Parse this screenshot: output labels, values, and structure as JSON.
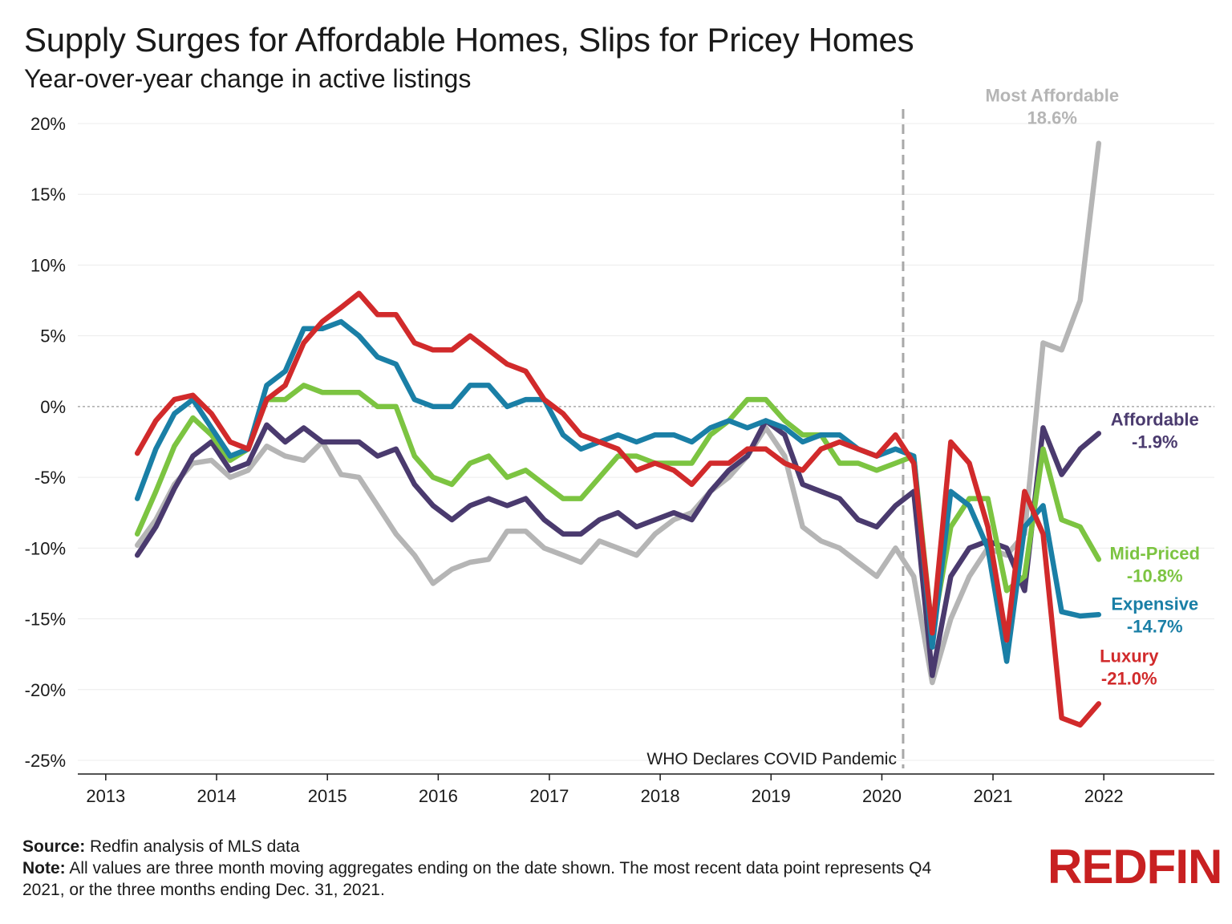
{
  "title": "Supply Surges for Affordable Homes, Slips for Pricey Homes",
  "subtitle": "Year-over-year change in active listings",
  "footer": {
    "source_label": "Source:",
    "source_text": "Redfin analysis of MLS data",
    "note_label": "Note:",
    "note_text": "All values are three month moving aggregates ending on the date shown. The most recent data point represents Q4 2021, or the three months ending Dec. 31, 2021."
  },
  "logo_text": "REDFIN",
  "chart_data": {
    "type": "line",
    "x_axis": {
      "type": "date",
      "range": [
        "2012-10-01",
        "2022-12-31"
      ],
      "ticks": [
        "2013",
        "2014",
        "2015",
        "2016",
        "2017",
        "2018",
        "2019",
        "2020",
        "2021",
        "2022"
      ]
    },
    "y_axis": {
      "range": [
        -25,
        20
      ],
      "ticks": [
        20,
        15,
        10,
        5,
        0,
        -5,
        -10,
        -15,
        -20,
        -25
      ],
      "tick_labels": [
        "20%",
        "15%",
        "10%",
        "5%",
        "0%",
        "-5%",
        "-10%",
        "-15%",
        "-20%",
        "-25%"
      ]
    },
    "grid": true,
    "zero_line": "dotted",
    "annotation": {
      "date": "2020-03-11",
      "label": "WHO Declares COVID Pandemic",
      "style": "dashed vertical line"
    },
    "x": [
      "2013-04",
      "2013-06",
      "2013-08",
      "2013-10",
      "2013-12",
      "2014-02",
      "2014-04",
      "2014-06",
      "2014-08",
      "2014-10",
      "2014-12",
      "2015-02",
      "2015-04",
      "2015-06",
      "2015-08",
      "2015-10",
      "2015-12",
      "2016-02",
      "2016-04",
      "2016-06",
      "2016-08",
      "2016-10",
      "2016-12",
      "2017-02",
      "2017-04",
      "2017-06",
      "2017-08",
      "2017-10",
      "2017-12",
      "2018-02",
      "2018-04",
      "2018-06",
      "2018-08",
      "2018-10",
      "2018-12",
      "2019-02",
      "2019-04",
      "2019-06",
      "2019-08",
      "2019-10",
      "2019-12",
      "2020-02",
      "2020-04",
      "2020-06",
      "2020-08",
      "2020-10",
      "2020-12",
      "2021-02",
      "2021-04",
      "2021-06",
      "2021-08",
      "2021-10",
      "2021-12"
    ],
    "series": [
      {
        "name": "Most Affordable",
        "end_label": "18.6%",
        "color": "#b5b5b5",
        "values": [
          -9.8,
          -8.0,
          -5.5,
          -4.0,
          -3.8,
          -5.0,
          -4.5,
          -2.8,
          -3.5,
          -3.8,
          -2.5,
          -4.8,
          -5.0,
          -7.0,
          -9.0,
          -10.5,
          -12.5,
          -11.5,
          -11.0,
          -10.8,
          -8.8,
          -8.8,
          -10.0,
          -10.5,
          -11.0,
          -9.5,
          -10.0,
          -10.5,
          -9.0,
          -8.0,
          -7.5,
          -6.0,
          -5.0,
          -3.5,
          -1.5,
          -3.5,
          -8.5,
          -9.5,
          -10.0,
          -11.0,
          -12.0,
          -10.0,
          -12.0,
          -19.5,
          -15.0,
          -12.0,
          -10.0,
          -10.5,
          -9.0,
          4.5,
          4.0,
          7.5,
          18.6
        ]
      },
      {
        "name": "Affordable",
        "end_label": "-1.9%",
        "color": "#4a3a6e",
        "values": [
          -10.5,
          -8.5,
          -5.8,
          -3.5,
          -2.5,
          -4.5,
          -4.0,
          -1.3,
          -2.5,
          -1.5,
          -2.5,
          -2.5,
          -2.5,
          -3.5,
          -3.0,
          -5.5,
          -7.0,
          -8.0,
          -7.0,
          -6.5,
          -7.0,
          -6.5,
          -8.0,
          -9.0,
          -9.0,
          -8.0,
          -7.5,
          -8.5,
          -8.0,
          -7.5,
          -8.0,
          -6.0,
          -4.5,
          -3.5,
          -1.0,
          -2.0,
          -5.5,
          -6.0,
          -6.5,
          -8.0,
          -8.5,
          -7.0,
          -6.0,
          -19.0,
          -12.0,
          -10.0,
          -9.5,
          -10.0,
          -13.0,
          -1.5,
          -4.8,
          -3.0,
          -1.9
        ]
      },
      {
        "name": "Mid-Priced",
        "end_label": "-10.8%",
        "color": "#7cc441",
        "values": [
          -9.0,
          -6.0,
          -2.8,
          -0.8,
          -2.0,
          -3.8,
          -3.0,
          0.5,
          0.5,
          1.5,
          1.0,
          1.0,
          1.0,
          0.0,
          0.0,
          -3.5,
          -5.0,
          -5.5,
          -4.0,
          -3.5,
          -5.0,
          -4.5,
          -5.5,
          -6.5,
          -6.5,
          -5.0,
          -3.5,
          -3.5,
          -4.0,
          -4.0,
          -4.0,
          -2.0,
          -1.0,
          0.5,
          0.5,
          -1.0,
          -2.0,
          -2.0,
          -4.0,
          -4.0,
          -4.5,
          -4.0,
          -3.5,
          -16.0,
          -8.5,
          -6.5,
          -6.5,
          -13.0,
          -12.0,
          -3.0,
          -8.0,
          -8.5,
          -10.8
        ]
      },
      {
        "name": "Expensive",
        "end_label": "-14.7%",
        "color": "#1a7fa6",
        "values": [
          -6.5,
          -3.0,
          -0.5,
          0.5,
          -1.5,
          -3.5,
          -3.0,
          1.5,
          2.5,
          5.5,
          5.5,
          6.0,
          5.0,
          3.5,
          3.0,
          0.5,
          0.0,
          0.0,
          1.5,
          1.5,
          0.0,
          0.5,
          0.5,
          -2.0,
          -3.0,
          -2.5,
          -2.0,
          -2.5,
          -2.0,
          -2.0,
          -2.5,
          -1.5,
          -1.0,
          -1.5,
          -1.0,
          -1.5,
          -2.5,
          -2.0,
          -2.0,
          -3.0,
          -3.5,
          -3.0,
          -3.5,
          -17.0,
          -6.0,
          -7.0,
          -10.0,
          -18.0,
          -8.5,
          -7.0,
          -14.5,
          -14.8,
          -14.7
        ]
      },
      {
        "name": "Luxury",
        "end_label": "-21.0%",
        "color": "#d12a2b",
        "values": [
          -3.3,
          -1.0,
          0.5,
          0.8,
          -0.5,
          -2.5,
          -3.0,
          0.5,
          1.5,
          4.5,
          6.0,
          7.0,
          8.0,
          6.5,
          6.5,
          4.5,
          4.0,
          4.0,
          5.0,
          4.0,
          3.0,
          2.5,
          0.5,
          -0.5,
          -2.0,
          -2.5,
          -3.0,
          -4.5,
          -4.0,
          -4.5,
          -5.5,
          -4.0,
          -4.0,
          -3.0,
          -3.0,
          -4.0,
          -4.5,
          -3.0,
          -2.5,
          -3.0,
          -3.5,
          -2.0,
          -4.0,
          -16.0,
          -2.5,
          -4.0,
          -8.5,
          -16.5,
          -6.0,
          -9.0,
          -22.0,
          -22.5,
          -21.0
        ]
      }
    ]
  }
}
